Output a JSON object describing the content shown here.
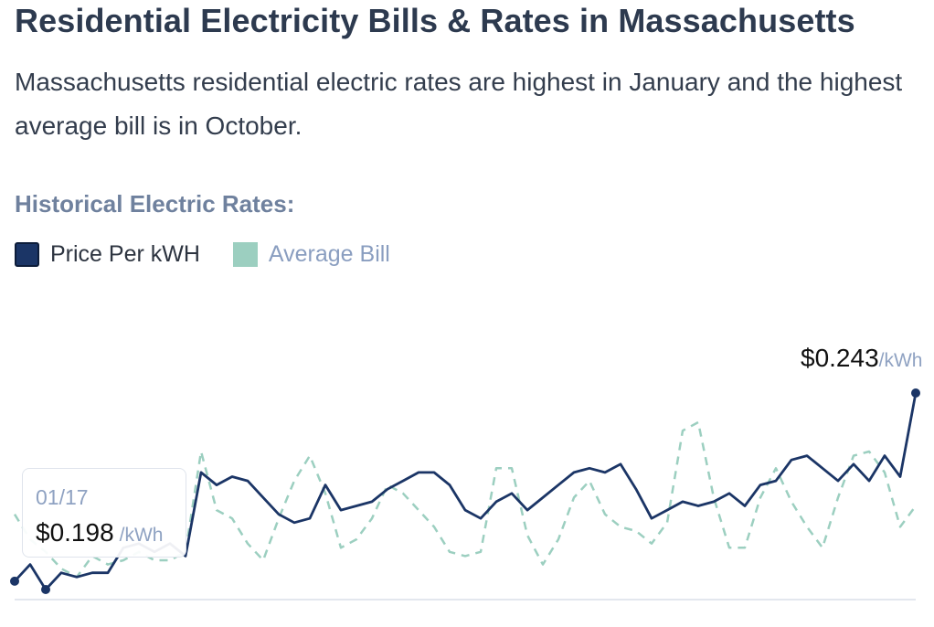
{
  "header": {
    "title": "Residential Electricity Bills & Rates in Massachusetts",
    "subtitle": "Massachusetts residential electric rates are highest in January and the highest average bill is in October."
  },
  "section_label": "Historical Electric Rates:",
  "legend": [
    {
      "label": "Price Per kWH",
      "color": "#1b3566",
      "active": true
    },
    {
      "label": "Average Bill",
      "color": "#9ccfc0",
      "active": false
    }
  ],
  "tooltip": {
    "date": "01/17",
    "value": "$0.198",
    "unit": "/kWh"
  },
  "last_point": {
    "value": "$0.243",
    "unit": "/kWh"
  },
  "chart_data": {
    "type": "line",
    "xlabel": "",
    "ylabel": "",
    "grid": false,
    "legend_position": "top-left",
    "series": [
      {
        "name": "Price Per kWH",
        "color": "#1b3566",
        "style": "solid",
        "unit": "$/kWh",
        "values": [
          0.198,
          0.202,
          0.196,
          0.2,
          0.199,
          0.2,
          0.2,
          0.206,
          0.207,
          0.205,
          0.207,
          0.204,
          0.224,
          0.221,
          0.223,
          0.222,
          0.218,
          0.214,
          0.212,
          0.213,
          0.221,
          0.215,
          0.216,
          0.217,
          0.22,
          0.222,
          0.224,
          0.224,
          0.221,
          0.215,
          0.213,
          0.217,
          0.219,
          0.215,
          0.218,
          0.221,
          0.224,
          0.225,
          0.224,
          0.226,
          0.22,
          0.213,
          0.215,
          0.217,
          0.216,
          0.217,
          0.219,
          0.216,
          0.221,
          0.222,
          0.227,
          0.228,
          0.225,
          0.222,
          0.226,
          0.222,
          0.228,
          0.223,
          0.243
        ]
      },
      {
        "name": "Average Bill",
        "color": "#9ccfc0",
        "style": "dashed",
        "values": [
          0.214,
          0.208,
          0.205,
          0.201,
          0.199,
          0.204,
          0.202,
          0.203,
          0.205,
          0.203,
          0.203,
          0.205,
          0.229,
          0.215,
          0.213,
          0.207,
          0.203,
          0.213,
          0.222,
          0.228,
          0.219,
          0.206,
          0.208,
          0.213,
          0.221,
          0.219,
          0.215,
          0.211,
          0.205,
          0.204,
          0.205,
          0.225,
          0.225,
          0.209,
          0.202,
          0.208,
          0.218,
          0.222,
          0.214,
          0.211,
          0.21,
          0.207,
          0.212,
          0.234,
          0.236,
          0.218,
          0.206,
          0.206,
          0.218,
          0.225,
          0.217,
          0.211,
          0.206,
          0.218,
          0.228,
          0.229,
          0.224,
          0.211,
          0.216
        ]
      }
    ]
  }
}
